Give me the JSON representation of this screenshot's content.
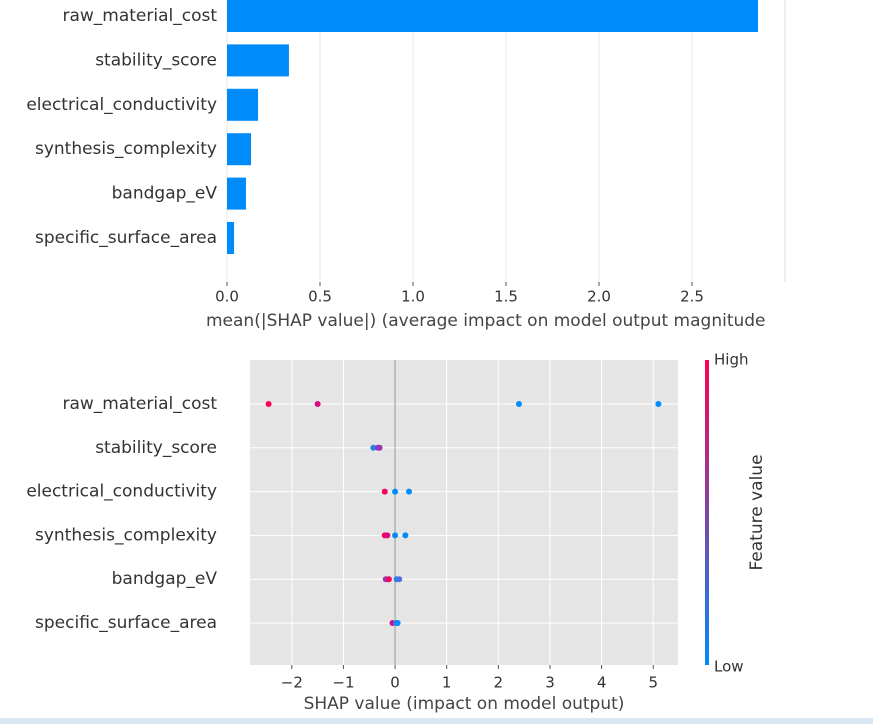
{
  "chart_data": [
    {
      "type": "bar",
      "orientation": "horizontal",
      "categories": [
        "raw_material_cost",
        "stability_score",
        "electrical_conductivity",
        "synthesis_complexity",
        "bandgap_eV",
        "specific_surface_area"
      ],
      "values": [
        2.855,
        0.333,
        0.167,
        0.129,
        0.102,
        0.038
      ],
      "color": "#008bfb",
      "xlim": [
        0,
        3.0
      ],
      "xticks": [
        {
          "value": 0,
          "label": "0.0"
        },
        0.5,
        {
          "value": 1,
          "label": "1.0"
        },
        1.5,
        {
          "value": 2,
          "label": "2.0"
        },
        2.5
      ],
      "xlabel": "mean(|SHAP value|) (average impact on model output magnitude",
      "grid": true
    },
    {
      "type": "beeswarm",
      "categories": [
        "raw_material_cost",
        "stability_score",
        "electrical_conductivity",
        "synthesis_complexity",
        "bandgap_eV",
        "specific_surface_area"
      ],
      "rows": [
        {
          "x": [
            -2.45,
            -1.5,
            2.4,
            5.1
          ],
          "colors": [
            "#ff0052",
            "#d80a7e",
            "#008bfb",
            "#008bfb"
          ]
        },
        {
          "x": [
            -0.42,
            -0.33,
            -0.3
          ],
          "colors": [
            "#1e82f0",
            "#7c40c0",
            "#9a34b0"
          ]
        },
        {
          "x": [
            -0.2,
            0.0,
            0.27
          ],
          "colors": [
            "#f2045e",
            "#008bfb",
            "#008bfb"
          ]
        },
        {
          "x": [
            -0.2,
            -0.15,
            0.0,
            0.2
          ],
          "colors": [
            "#ff0052",
            "#d80a7e",
            "#0a88f8",
            "#008bfb"
          ]
        },
        {
          "x": [
            -0.18,
            -0.12,
            0.03,
            0.08
          ],
          "colors": [
            "#8c3ab8",
            "#ff0052",
            "#2a7ff0",
            "#4a70e0"
          ]
        },
        {
          "x": [
            -0.05,
            0.02,
            0.05
          ],
          "colors": [
            "#c8108a",
            "#3c78e8",
            "#008bfb"
          ]
        }
      ],
      "xlim": [
        -2.81,
        5.48
      ],
      "xticks": [
        {
          "value": -2,
          "label": "−2"
        },
        {
          "value": -1,
          "label": "−1"
        },
        0,
        1,
        2,
        3,
        4,
        5
      ],
      "xlabel": "SHAP value (impact on model output)",
      "grid": true,
      "colorbar": {
        "label": "Feature value",
        "high": "High",
        "low": "Low",
        "colors": [
          "#008bfb",
          "#ff0052"
        ]
      }
    }
  ]
}
